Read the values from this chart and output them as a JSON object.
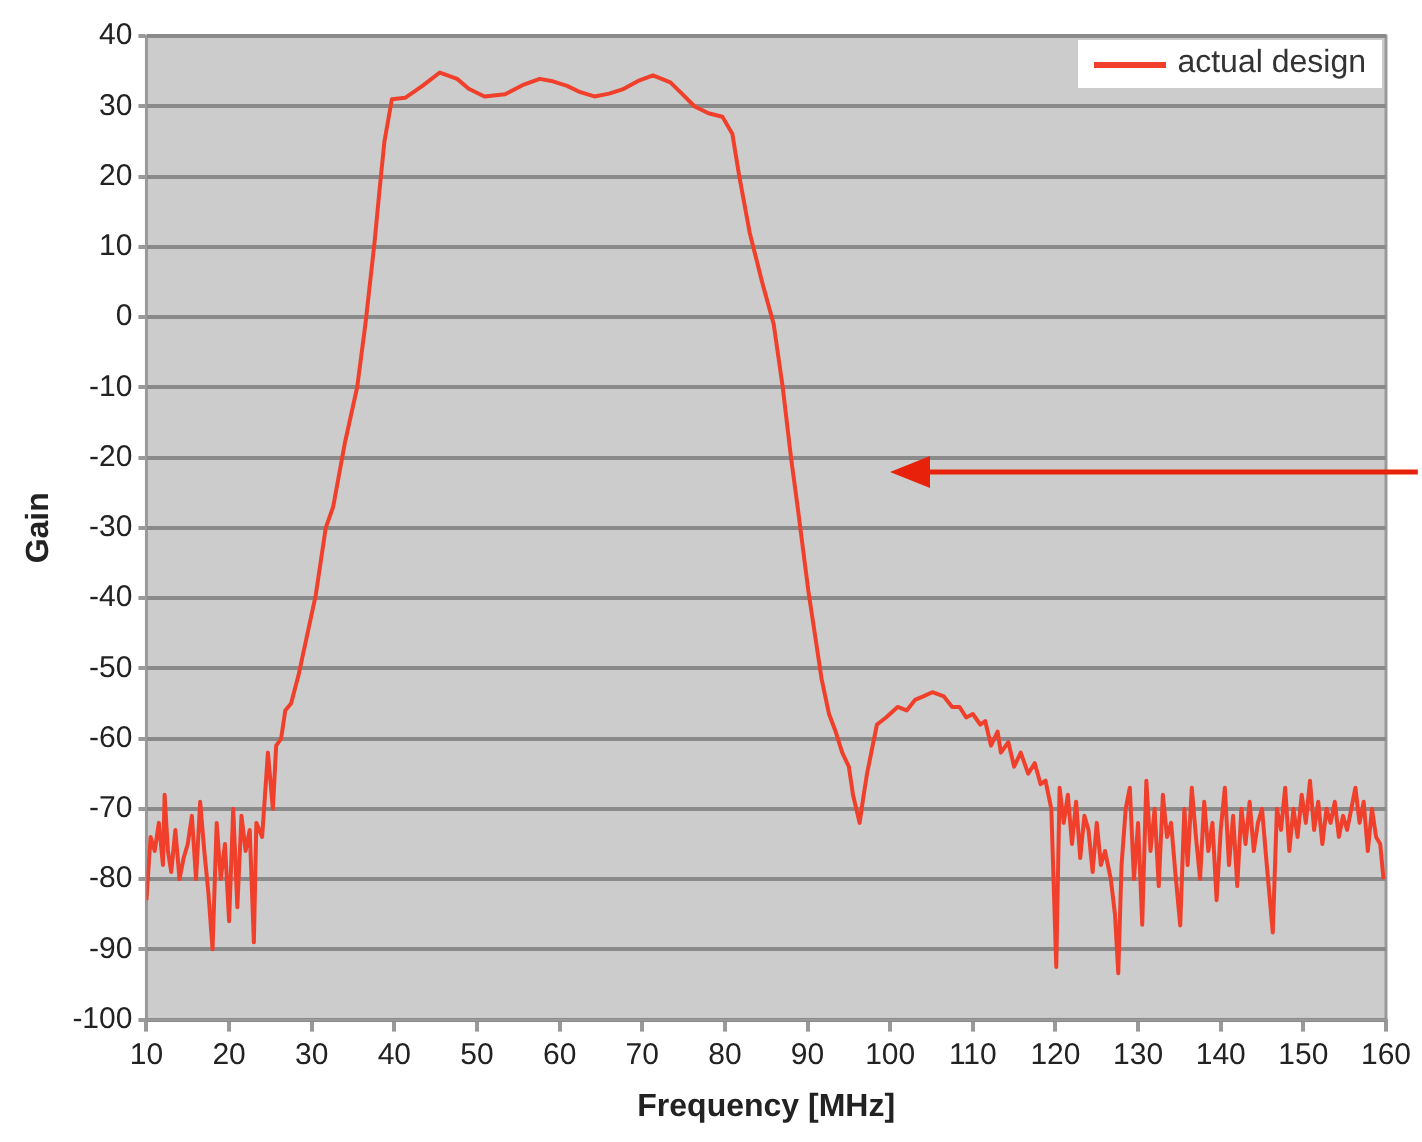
{
  "chart_data": {
    "type": "line",
    "xlabel": "Frequency [MHz]",
    "ylabel": "Gain",
    "xlim": [
      10,
      160
    ],
    "xticks": [
      10,
      20,
      30,
      40,
      50,
      60,
      70,
      80,
      90,
      100,
      110,
      120,
      130,
      140,
      150,
      160
    ],
    "ylim": [
      -100,
      40
    ],
    "yticks": [
      -100,
      -90,
      -80,
      -70,
      -60,
      -50,
      -40,
      -30,
      -20,
      -10,
      0,
      10,
      20,
      30,
      40
    ],
    "grid": "y",
    "legend": "top right",
    "marker": "none",
    "line_style": "solid",
    "series": [
      {
        "name": "actual design",
        "color": "#f0402c",
        "x": [
          10,
          10.5,
          11,
          11.5,
          12,
          12.2,
          12.6,
          13,
          13.5,
          14,
          14.5,
          15,
          15.5,
          16,
          16.5,
          17,
          17.5,
          18,
          18.5,
          19,
          19.5,
          20,
          20.5,
          21,
          21.5,
          22,
          22.5,
          23,
          23.3,
          24,
          24.7,
          25.3,
          25.7,
          26.3,
          26.8,
          27.5,
          28.4,
          29.5,
          30.5,
          31.7,
          32.6,
          34,
          35.5,
          36.5,
          37.6,
          38.2,
          38.8,
          39.7,
          41.3,
          43.4,
          45.5,
          47.6,
          49,
          50.9,
          53.4,
          55.5,
          57.6,
          59,
          60.9,
          62.5,
          64.2,
          66,
          67.6,
          69.5,
          71.3,
          73.4,
          74.8,
          76.3,
          78,
          79.7,
          80.9,
          81.7,
          83,
          84.5,
          85.9,
          87,
          88,
          88.8,
          90.1,
          91,
          91.7,
          92.6,
          93.4,
          94.2,
          95,
          95.5,
          96.3,
          96.8,
          97.2,
          98.4,
          99.5,
          100.9,
          102,
          103,
          104,
          105.1,
          106.5,
          107.5,
          108.4,
          109.2,
          110,
          110.9,
          111.5,
          112.2,
          113,
          113.4,
          114.3,
          115,
          115.8,
          116.7,
          117.5,
          118.2,
          118.8,
          119.5,
          120.1,
          120.5,
          121,
          121.5,
          122,
          122.5,
          123,
          123.5,
          124,
          124.5,
          125,
          125.5,
          126,
          126.7,
          127.2,
          127.6,
          128,
          128.5,
          129,
          129.5,
          130,
          130.5,
          131,
          131.5,
          132,
          132.5,
          133,
          133.5,
          134,
          134.5,
          135.1,
          135.6,
          136,
          136.5,
          137,
          137.5,
          138,
          138.5,
          139,
          139.5,
          140,
          140.5,
          141,
          141.5,
          142,
          142.5,
          143,
          143.5,
          144,
          144.5,
          145,
          145.5,
          146.3,
          146.8,
          147.3,
          147.8,
          148.3,
          148.8,
          149.3,
          149.8,
          150.3,
          150.8,
          151.3,
          151.8,
          152.3,
          152.8,
          153.3,
          153.8,
          154.3,
          154.8,
          155.3,
          155.8,
          156.3,
          156.8,
          157.3,
          157.8,
          158.3,
          158.8,
          159.3,
          159.7
        ],
        "values": [
          -83,
          -74,
          -76,
          -72,
          -78,
          -68,
          -76,
          -79,
          -73,
          -80,
          -77,
          -75,
          -71,
          -80,
          -69,
          -76,
          -82,
          -90,
          -72,
          -80,
          -75,
          -86,
          -70,
          -84,
          -71,
          -76,
          -73,
          -89,
          -72,
          -74,
          -62,
          -70,
          -61,
          -60,
          -56,
          -55,
          -51,
          -45,
          -39.5,
          -30,
          -27,
          -18,
          -10,
          -1,
          10.6,
          18,
          25,
          31,
          31.2,
          32.9,
          34.8,
          33.9,
          32.5,
          31.4,
          31.7,
          33,
          33.9,
          33.6,
          32.9,
          32,
          31.4,
          31.8,
          32.4,
          33.6,
          34.4,
          33.4,
          31.8,
          30,
          29,
          28.5,
          26.1,
          20.3,
          12,
          5,
          -1,
          -10,
          -20,
          -27,
          -39,
          -46,
          -51.5,
          -56.5,
          -59,
          -62,
          -64,
          -68,
          -72,
          -68,
          -65,
          -58,
          -57,
          -55.5,
          -56,
          -54.5,
          -54,
          -53.4,
          -54,
          -55.5,
          -55.5,
          -57,
          -56.5,
          -58,
          -57.5,
          -61,
          -59,
          -62,
          -60.5,
          -64,
          -62,
          -65,
          -63.5,
          -66.5,
          -66,
          -70,
          -92.5,
          -67,
          -72,
          -68,
          -75,
          -69,
          -77,
          -71,
          -73,
          -79,
          -72,
          -78,
          -76,
          -80,
          -85,
          -93.4,
          -78,
          -70,
          -67,
          -80,
          -72,
          -86.5,
          -66,
          -76,
          -70,
          -81,
          -68,
          -74,
          -72,
          -79,
          -86.6,
          -70,
          -78,
          -67,
          -74,
          -80,
          -69,
          -76,
          -72,
          -83,
          -73,
          -67,
          -78,
          -71,
          -81,
          -70,
          -75,
          -69,
          -76,
          -72,
          -70,
          -77,
          -87.6,
          -70,
          -73,
          -67,
          -76,
          -70,
          -74,
          -68,
          -72,
          -66,
          -73,
          -69,
          -75,
          -70,
          -72,
          -69,
          -74,
          -71,
          -73,
          -70,
          -67,
          -72,
          -69,
          -76,
          -70,
          -74,
          -75,
          -80
        ]
      }
    ]
  }
}
